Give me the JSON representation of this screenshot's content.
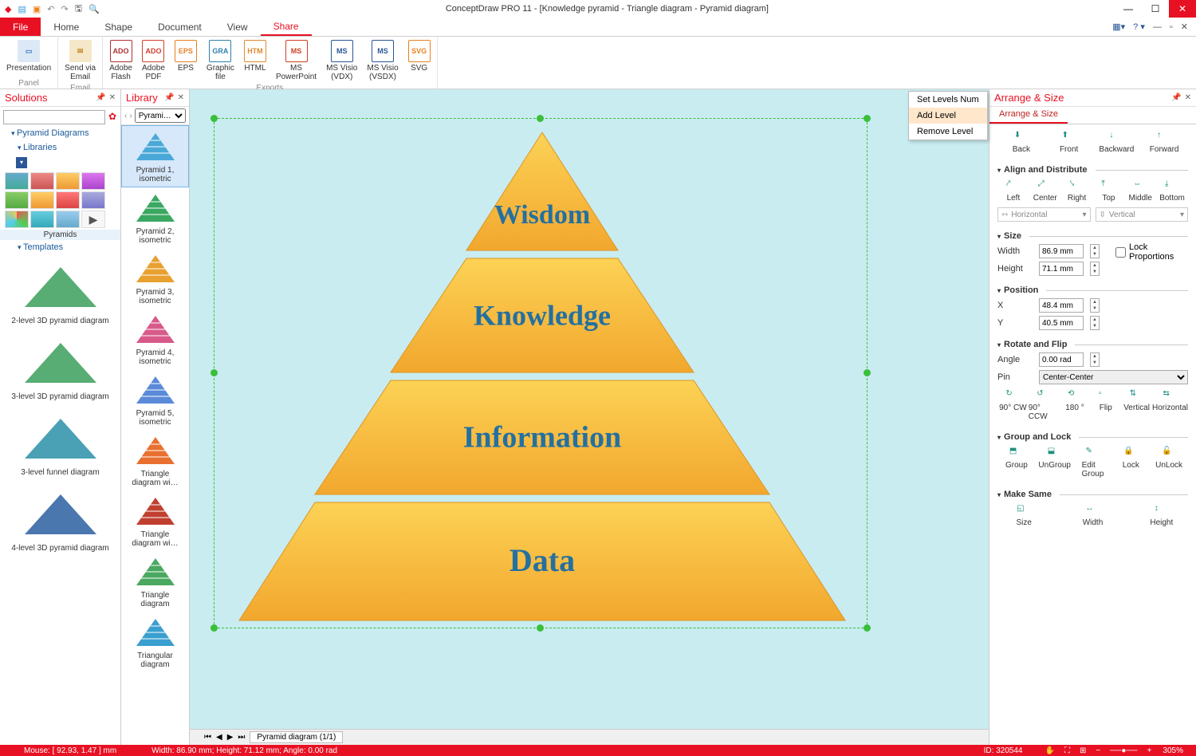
{
  "app_title": "ConceptDraw PRO 11 - [Knowledge pyramid - Triangle diagram - Pyramid diagram]",
  "ribbon": {
    "tabs": [
      "File",
      "Home",
      "Shape",
      "Document",
      "View",
      "Share"
    ],
    "active_tab": "Share",
    "groups": {
      "panel": {
        "label": "Panel",
        "buttons": [
          {
            "l": "Presentation"
          }
        ]
      },
      "email": {
        "label": "Email",
        "buttons": [
          {
            "l": "Send via\nEmail"
          }
        ]
      },
      "exports": {
        "label": "Exports",
        "buttons": [
          {
            "l": "Adobe\nFlash",
            "c": "#b03030"
          },
          {
            "l": "Adobe\nPDF",
            "c": "#d04030"
          },
          {
            "l": "EPS",
            "c": "#e88020"
          },
          {
            "l": "Graphic\nfile",
            "c": "#3080b0"
          },
          {
            "l": "HTML",
            "c": "#e08830"
          },
          {
            "l": "MS\nPowerPoint",
            "c": "#d04020"
          },
          {
            "l": "MS Visio\n(VDX)",
            "c": "#2b5797"
          },
          {
            "l": "MS Visio\n(VSDX)",
            "c": "#2b5797"
          },
          {
            "l": "SVG",
            "c": "#e88020"
          }
        ]
      }
    }
  },
  "solutions": {
    "title": "Solutions",
    "tree": [
      "Pyramid Diagrams"
    ],
    "libs_head": "Libraries",
    "pyramids_cap": "Pyramids",
    "templates_head": "Templates",
    "templates": [
      "2-level 3D pyramid diagram",
      "3-level 3D pyramid diagram",
      "3-level funnel diagram",
      "4-level 3D pyramid diagram"
    ]
  },
  "library": {
    "title": "Library",
    "combo": "Pyrami…",
    "items": [
      {
        "l": "Pyramid 1,\nisometric",
        "sel": true
      },
      {
        "l": "Pyramid 2,\nisometric"
      },
      {
        "l": "Pyramid 3,\nisometric"
      },
      {
        "l": "Pyramid 4,\nisometric"
      },
      {
        "l": "Pyramid 5,\nisometric"
      },
      {
        "l": "Triangle\ndiagram wi…"
      },
      {
        "l": "Triangle\ndiagram wi…"
      },
      {
        "l": "Triangle\ndiagram"
      },
      {
        "l": "Triangular\ndiagram"
      }
    ]
  },
  "canvas": {
    "background": "#c8ecf0",
    "pyramid": {
      "fill_top": "#fcd255",
      "fill_bottom": "#f2a72e",
      "stroke": "#e09420",
      "text_color": "#2470a0",
      "levels": [
        {
          "label": "Wisdom",
          "fontsize": 34
        },
        {
          "label": "Knowledge",
          "fontsize": 36
        },
        {
          "label": "Information",
          "fontsize": 38
        },
        {
          "label": "Data",
          "fontsize": 40
        }
      ]
    },
    "sheet_tab": "Pyramid diagram (1/1)"
  },
  "context_menu": {
    "items": [
      "Set Levels Num",
      "Add Level",
      "Remove Level"
    ],
    "highlighted": 1
  },
  "arrange": {
    "title": "Arrange & Size",
    "tab": "Arrange & Size",
    "order": [
      "Back",
      "Front",
      "Backward",
      "Forward"
    ],
    "align_head": "Align and Distribute",
    "align": [
      "Left",
      "Center",
      "Right",
      "Top",
      "Middle",
      "Bottom"
    ],
    "dist": [
      "Horizontal",
      "Vertical"
    ],
    "size_head": "Size",
    "width_l": "Width",
    "width_v": "86.9 mm",
    "height_l": "Height",
    "height_v": "71.1 mm",
    "lock_prop": "Lock Proportions",
    "pos_head": "Position",
    "x_l": "X",
    "x_v": "48.4 mm",
    "y_l": "Y",
    "y_v": "40.5 mm",
    "rot_head": "Rotate and Flip",
    "angle_l": "Angle",
    "angle_v": "0.00 rad",
    "pin_l": "Pin",
    "pin_v": "Center-Center",
    "rotbtns": [
      "90° CW",
      "90° CCW",
      "180 °",
      "Flip",
      "Vertical",
      "Horizontal"
    ],
    "group_head": "Group and Lock",
    "groupbtns": [
      "Group",
      "UnGroup",
      "Edit\nGroup",
      "Lock",
      "UnLock"
    ],
    "same_head": "Make Same",
    "samebtns": [
      "Size",
      "Width",
      "Height"
    ]
  },
  "status": {
    "mouse": "Mouse: [ 92.93, 1.47 ] mm",
    "dims": "Width: 86.90 mm;  Height: 71.12 mm;  Angle: 0.00 rad",
    "id": "ID: 320544",
    "zoom": "305%"
  }
}
